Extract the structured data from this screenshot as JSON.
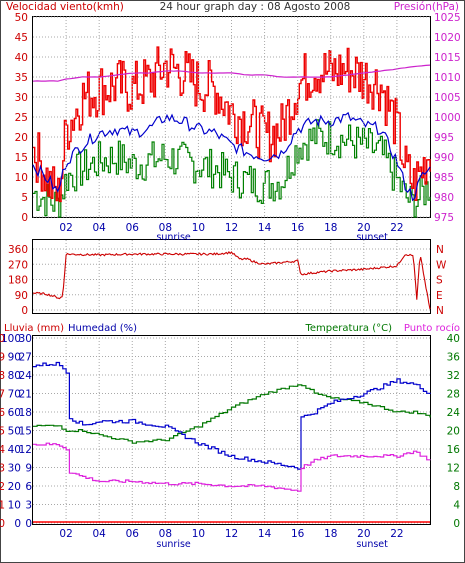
{
  "header": {
    "left_title": "Velocidad viento(kmh)",
    "center_title": "24 hour graph day : 08 Agosto 2008",
    "right_title": "Presión(hPa)"
  },
  "colors": {
    "wind_gust": "#ee0000",
    "wind_avg": "#0000cc",
    "wind_dir_bar": "#008000",
    "pressure": "#cc22cc",
    "direction": "#cc0000",
    "humidity": "#0000cc",
    "temperature": "#007700",
    "dewpoint": "#dd22dd",
    "rain": "#ff0000",
    "grid": "#a8a8a8",
    "axis_left": "#cc0000",
    "axis_right_pressure": "#cc22cc",
    "axis_humidity": "#0000aa",
    "axis_temp": "#007700"
  },
  "x_ticks": [
    "02",
    "04",
    "06",
    "08",
    "10",
    "12",
    "14",
    "16",
    "18",
    "20",
    "22"
  ],
  "sunrise_label": "sunrise",
  "sunset_label": "sunset",
  "chart_data": [
    {
      "type": "line",
      "name": "wind_pressure",
      "ylabel_left": "Velocidad viento(kmh)",
      "ylabel_right": "Presión(hPa)",
      "ylim_left": [
        0,
        50
      ],
      "yticks_left": [
        "0",
        "5",
        "10",
        "15",
        "20",
        "25",
        "30",
        "35",
        "40",
        "45",
        "50"
      ],
      "ylim_right": [
        975,
        1025
      ],
      "yticks_right": [
        "975",
        "980",
        "985",
        "990",
        "995",
        "1000",
        "1005",
        "1010",
        "1015",
        "1020",
        "1025"
      ],
      "x_hours": [
        0,
        0.5,
        1,
        1.5,
        2,
        3,
        4,
        5,
        6,
        7,
        8,
        9,
        10,
        11,
        12,
        13,
        14,
        15,
        16,
        17,
        18,
        19,
        20,
        21,
        22,
        22.5,
        23,
        23.5,
        24
      ],
      "series": [
        {
          "name": "gust",
          "values": [
            17,
            13,
            8,
            5,
            22,
            30,
            32,
            33,
            32,
            34,
            38,
            36,
            33,
            32,
            26,
            24,
            20,
            22,
            33,
            37,
            36,
            37,
            35,
            33,
            22,
            12,
            8,
            12,
            17
          ]
        },
        {
          "name": "average",
          "values": [
            13,
            11,
            9,
            6,
            14,
            18,
            21,
            22,
            21,
            22,
            25,
            24,
            22,
            21,
            18,
            16,
            15,
            16,
            22,
            24,
            24,
            25,
            23,
            22,
            14,
            8,
            5,
            10,
            12
          ]
        },
        {
          "name": "direction_bars",
          "values": [
            6,
            5,
            4,
            3,
            10,
            12,
            14,
            15,
            13,
            14,
            15,
            14,
            13,
            12,
            10,
            9,
            8,
            9,
            18,
            20,
            20,
            19,
            18,
            16,
            9,
            5,
            3,
            6,
            8
          ]
        },
        {
          "name": "pressure",
          "values": [
            1009,
            1009,
            1009,
            1009,
            1009.5,
            1010,
            1010,
            1010.5,
            1011,
            1011,
            1011.5,
            1011.5,
            1011,
            1011,
            1011,
            1010.5,
            1010.5,
            1010,
            1010,
            1010,
            1010,
            1010.5,
            1011,
            1011.5,
            1012,
            1012.3,
            1012.6,
            1012.8,
            1013
          ]
        }
      ]
    },
    {
      "type": "line",
      "name": "wind_direction",
      "ylim": [
        0,
        360
      ],
      "yticks_left": [
        "0",
        "90",
        "180",
        "270",
        "360"
      ],
      "yticks_right": [
        "N",
        "E",
        "S",
        "W",
        "N"
      ],
      "x_hours": [
        0,
        0.8,
        1.6,
        1.8,
        2,
        4,
        6,
        8,
        10,
        11,
        12,
        12.5,
        13,
        13.5,
        14,
        15,
        16,
        16.2,
        17,
        18,
        20,
        22,
        22.5,
        23,
        23.2,
        23.4,
        24
      ],
      "series": [
        {
          "name": "direction",
          "values": [
            100,
            95,
            70,
            80,
            330,
            325,
            330,
            330,
            330,
            330,
            340,
            300,
            300,
            280,
            270,
            280,
            290,
            210,
            220,
            230,
            240,
            260,
            330,
            320,
            60,
            330,
            0
          ]
        }
      ]
    },
    {
      "type": "line",
      "name": "humidity_temperature",
      "ylabel_left": "Lluvia (mm)",
      "ylabel_left2": "Humedad (%)",
      "ylabel_right": "Temperatura (°C)",
      "ylabel_right2": "Punto rocío",
      "ylim_rain": [
        0,
        10
      ],
      "yticks_rain": [
        "0",
        "1",
        "2",
        "3",
        "4",
        "5",
        "6",
        "7",
        "8",
        "9",
        "10"
      ],
      "ylim_humidity": [
        0,
        100
      ],
      "yticks_humidity": [
        "0",
        "10",
        "20",
        "30",
        "40",
        "50",
        "60",
        "70",
        "80",
        "90",
        "100"
      ],
      "yticks_inner": [
        "0",
        "3",
        "6",
        "9",
        "12",
        "15",
        "18",
        "21",
        "24",
        "27",
        "30"
      ],
      "ylim_temp": [
        0,
        40
      ],
      "yticks_temp": [
        "0",
        "4",
        "8",
        "12",
        "16",
        "20",
        "24",
        "28",
        "32",
        "36",
        "40"
      ],
      "x_hours": [
        0,
        1,
        1.5,
        2,
        2.2,
        3,
        4,
        6,
        8,
        10,
        12,
        14,
        16,
        16.2,
        17,
        18,
        20,
        22,
        23,
        24
      ],
      "series": [
        {
          "name": "humidity",
          "values": [
            85,
            86,
            86,
            82,
            57,
            53,
            55,
            55,
            52,
            43,
            36,
            33,
            30,
            57,
            60,
            65,
            70,
            77,
            75,
            70
          ]
        },
        {
          "name": "temperature",
          "values": [
            21,
            21,
            21,
            20,
            20,
            20,
            19,
            17.5,
            18,
            21,
            25,
            28,
            30,
            30,
            28,
            27,
            26,
            24,
            24,
            23
          ]
        },
        {
          "name": "dewpoint",
          "values": [
            17,
            17,
            17,
            16,
            11,
            10,
            9,
            9,
            8.5,
            8.5,
            8,
            8,
            7,
            12,
            13.5,
            14.5,
            14.5,
            14.5,
            15.5,
            13.5
          ]
        },
        {
          "name": "rain",
          "values": [
            0,
            0,
            0,
            0,
            0,
            0,
            0,
            0,
            0,
            0,
            0,
            0,
            0,
            0,
            0,
            0,
            0,
            0,
            0,
            0
          ]
        }
      ]
    }
  ]
}
